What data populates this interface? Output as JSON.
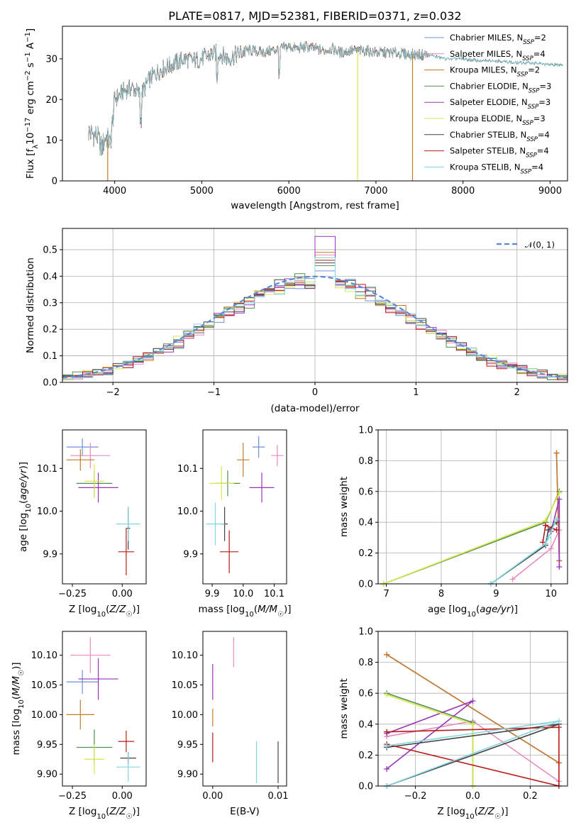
{
  "title": "PLATE=0817, MJD=52381, FIBERID=0371, z=0.032",
  "colors": {
    "Chabrier MILES": "#6f8fdc",
    "Salpeter MILES": "#e88bbd",
    "Kroupa MILES": "#c67b27",
    "Chabrier ELODIE": "#4f8f4f",
    "Salpeter ELODIE": "#9b33b8",
    "Kroupa ELODIE": "#d8e64a",
    "Chabrier STELIB": "#454545",
    "Salpeter STELIB": "#b81a1a",
    "Kroupa STELIB": "#82d6e0",
    "normal": "#5b87d8"
  },
  "chart_data": [
    {
      "id": "spectrum",
      "type": "line",
      "title": "PLATE=0817, MJD=52381, FIBERID=0371, z=0.032",
      "xlabel": "wavelength [Angstrom, rest frame]",
      "ylabel": "Flux [f$_\\lambda$10$^{-17}$ erg cm$^{-2}$ s$^{-1}$ A$^{-1}$]",
      "ylabel_parts": [
        "Flux [f",
        "λ",
        "10",
        "−17",
        " erg cm",
        "−2",
        " s",
        "−1",
        " A",
        "−1",
        "]"
      ],
      "xlim": [
        3400,
        9200
      ],
      "ylim": [
        0,
        38
      ],
      "xticks": [
        4000,
        5000,
        6000,
        7000,
        8000,
        9000
      ],
      "yticks": [
        0,
        10,
        20,
        30
      ],
      "legend_position": "top-right",
      "legend": [
        {
          "label": "Chabrier MILES, N",
          "sub": "SSP",
          "suffix": "=2",
          "color_key": "Chabrier MILES"
        },
        {
          "label": "Salpeter MILES, N",
          "sub": "SSP",
          "suffix": "=4",
          "color_key": "Salpeter MILES"
        },
        {
          "label": "Kroupa MILES, N",
          "sub": "SSP",
          "suffix": "=2",
          "color_key": "Kroupa MILES"
        },
        {
          "label": "Chabrier ELODIE, N",
          "sub": "SSP",
          "suffix": "=3",
          "color_key": "Chabrier ELODIE"
        },
        {
          "label": "Salpeter ELODIE, N",
          "sub": "SSP",
          "suffix": "=3",
          "color_key": "Salpeter ELODIE"
        },
        {
          "label": "Kroupa ELODIE, N",
          "sub": "SSP",
          "suffix": "=3",
          "color_key": "Kroupa ELODIE"
        },
        {
          "label": "Chabrier STELIB, N",
          "sub": "SSP",
          "suffix": "=4",
          "color_key": "Chabrier STELIB"
        },
        {
          "label": "Salpeter STELIB, N",
          "sub": "SSP",
          "suffix": "=4",
          "color_key": "Salpeter STELIB"
        },
        {
          "label": "Kroupa STELIB, N",
          "sub": "SSP",
          "suffix": "=4",
          "color_key": "Kroupa STELIB"
        }
      ],
      "continuum": [
        [
          3700,
          12
        ],
        [
          3800,
          11
        ],
        [
          3850,
          8
        ],
        [
          3900,
          11
        ],
        [
          3950,
          9
        ],
        [
          4000,
          20
        ],
        [
          4100,
          22
        ],
        [
          4200,
          23
        ],
        [
          4300,
          21
        ],
        [
          4400,
          25
        ],
        [
          4500,
          27
        ],
        [
          4600,
          28
        ],
        [
          4700,
          29
        ],
        [
          4800,
          30
        ],
        [
          4900,
          29.5
        ],
        [
          5000,
          30
        ],
        [
          5100,
          31
        ],
        [
          5200,
          31.5
        ],
        [
          5300,
          30
        ],
        [
          5400,
          31
        ],
        [
          5500,
          32
        ],
        [
          5600,
          32
        ],
        [
          5700,
          31.5
        ],
        [
          5800,
          32
        ],
        [
          5900,
          32.5
        ],
        [
          6000,
          33
        ],
        [
          6100,
          32.5
        ],
        [
          6200,
          33
        ],
        [
          6300,
          32.5
        ],
        [
          6400,
          32
        ],
        [
          6500,
          32.5
        ],
        [
          6600,
          31.5
        ],
        [
          6700,
          32
        ],
        [
          6800,
          32
        ],
        [
          6900,
          32
        ],
        [
          7000,
          31.5
        ],
        [
          7200,
          31.5
        ],
        [
          7400,
          31
        ],
        [
          7600,
          31
        ],
        [
          7800,
          30
        ],
        [
          8000,
          30
        ],
        [
          8200,
          29.5
        ],
        [
          8400,
          29.5
        ],
        [
          8600,
          29
        ],
        [
          8800,
          29
        ],
        [
          9000,
          28.5
        ],
        [
          9150,
          28.5
        ]
      ],
      "dropouts": [
        {
          "x": 3920,
          "y": 0,
          "color_key": "Kroupa MILES"
        },
        {
          "x": 6790,
          "y": 0,
          "color_key": "Kroupa ELODIE"
        },
        {
          "x": 7420,
          "y": 0,
          "color_key": "Kroupa MILES"
        }
      ]
    },
    {
      "id": "residuals",
      "type": "step-histogram",
      "xlabel": "(data-model)/error",
      "ylabel": "Normed distribution",
      "xlim": [
        -2.5,
        2.5
      ],
      "ylim": [
        0,
        0.58
      ],
      "xticks": [
        -2,
        -1,
        0,
        1,
        2
      ],
      "yticks": [
        0.0,
        0.1,
        0.2,
        0.3,
        0.4,
        0.5
      ],
      "grid": true,
      "legend_position": "top-right",
      "legend_label": "𝒩(0, 1)",
      "bin_width": 0.1,
      "peak_heights": {
        "Chabrier MILES": 0.42,
        "Salpeter MILES": 0.48,
        "Kroupa MILES": 0.49,
        "Chabrier ELODIE": 0.44,
        "Salpeter ELODIE": 0.55,
        "Kroupa ELODIE": 0.47,
        "Chabrier STELIB": 0.45,
        "Salpeter STELIB": 0.46,
        "Kroupa STELIB": 0.47
      }
    },
    {
      "id": "age-vs-Z",
      "type": "errorbar",
      "xlabel": "Z [log10(Z/Z☉)]",
      "ylabel": "age [log10(age/yr)]",
      "xlim": [
        -0.3,
        0.12
      ],
      "ylim": [
        9.83,
        10.19
      ],
      "xticks": [
        -0.25,
        0.0
      ],
      "xtick_labels": [
        "−0.25",
        "0.00"
      ],
      "yticks": [
        9.9,
        10.0,
        10.1
      ],
      "ytick_labels": [
        "9.9",
        "10.0",
        "10.1"
      ],
      "points": [
        {
          "model": "Chabrier MILES",
          "x": -0.2,
          "y": 10.15,
          "xerr": 0.08,
          "yerr": 0.02
        },
        {
          "model": "Salpeter MILES",
          "x": -0.16,
          "y": 10.13,
          "xerr": 0.1,
          "yerr": 0.03
        },
        {
          "model": "Kroupa MILES",
          "x": -0.21,
          "y": 10.12,
          "xerr": 0.07,
          "yerr": 0.025
        },
        {
          "model": "Chabrier ELODIE",
          "x": -0.14,
          "y": 10.065,
          "xerr": 0.09,
          "yerr": 0.03
        },
        {
          "model": "Salpeter ELODIE",
          "x": -0.12,
          "y": 10.055,
          "xerr": 0.1,
          "yerr": 0.035
        },
        {
          "model": "Kroupa ELODIE",
          "x": -0.14,
          "y": 10.07,
          "xerr": 0.05,
          "yerr": 0.04
        },
        {
          "model": "Chabrier STELIB",
          "x": 0.03,
          "y": 9.96,
          "xerr": 0.01,
          "yerr": 0.05
        },
        {
          "model": "Salpeter STELIB",
          "x": 0.02,
          "y": 9.905,
          "xerr": 0.04,
          "yerr": 0.055
        },
        {
          "model": "Kroupa STELIB",
          "x": 0.03,
          "y": 9.97,
          "xerr": 0.06,
          "yerr": 0.04
        }
      ]
    },
    {
      "id": "age-vs-mass",
      "type": "errorbar",
      "xlabel": "mass [log10(M/M☉)]",
      "ylabel": "",
      "xlim": [
        9.87,
        10.14
      ],
      "ylim": [
        9.83,
        10.19
      ],
      "xticks": [
        9.9,
        10.0,
        10.1
      ],
      "xtick_labels": [
        "9.9",
        "10.0",
        "10.1"
      ],
      "yticks": [
        9.9,
        10.0,
        10.1
      ],
      "ytick_labels": [
        "9.9",
        "10.0",
        "10.1"
      ],
      "points": [
        {
          "model": "Chabrier MILES",
          "x": 10.05,
          "y": 10.15,
          "xerr": 0.02,
          "yerr": 0.025
        },
        {
          "model": "Salpeter MILES",
          "x": 10.11,
          "y": 10.13,
          "xerr": 0.02,
          "yerr": 0.025
        },
        {
          "model": "Kroupa MILES",
          "x": 10.0,
          "y": 10.12,
          "xerr": 0.02,
          "yerr": 0.04
        },
        {
          "model": "Chabrier ELODIE",
          "x": 9.95,
          "y": 10.065,
          "xerr": 0.04,
          "yerr": 0.03
        },
        {
          "model": "Salpeter ELODIE",
          "x": 10.06,
          "y": 10.055,
          "xerr": 0.04,
          "yerr": 0.035
        },
        {
          "model": "Kroupa ELODIE",
          "x": 9.93,
          "y": 10.065,
          "xerr": 0.04,
          "yerr": 0.04
        },
        {
          "model": "Chabrier STELIB",
          "x": 9.94,
          "y": 9.97,
          "xerr": 0.01,
          "yerr": 0.04
        },
        {
          "model": "Salpeter STELIB",
          "x": 9.955,
          "y": 9.905,
          "xerr": 0.03,
          "yerr": 0.05
        },
        {
          "model": "Kroupa STELIB",
          "x": 9.91,
          "y": 9.97,
          "xerr": 0.03,
          "yerr": 0.05
        }
      ]
    },
    {
      "id": "weight-vs-age",
      "type": "line",
      "xlabel": "age [log10(age/yr)]",
      "ylabel": "mass weight",
      "xlim": [
        6.85,
        10.3
      ],
      "ylim": [
        0,
        1
      ],
      "xticks": [
        7,
        8,
        9,
        10
      ],
      "xtick_labels": [
        "7",
        "8",
        "9",
        "10"
      ],
      "yticks": [
        0.0,
        0.2,
        0.4,
        0.6,
        0.8,
        1.0
      ],
      "ytick_labels": [
        "0.0",
        "0.2",
        "0.4",
        "0.6",
        "0.8",
        "1.0"
      ],
      "grid": true,
      "series": [
        {
          "model": "Chabrier MILES",
          "x": [
            10.1,
            10.15
          ],
          "y": [
            0.85,
            0.15
          ]
        },
        {
          "model": "Salpeter MILES",
          "x": [
            9.3,
            10.0,
            10.15,
            10.1
          ],
          "y": [
            0.03,
            0.23,
            0.35,
            0.42
          ]
        },
        {
          "model": "Kroupa MILES",
          "x": [
            10.1,
            10.15
          ],
          "y": [
            0.85,
            0.15
          ]
        },
        {
          "model": "Chabrier ELODIE",
          "x": [
            6.95,
            9.9,
            10.15
          ],
          "y": [
            0.0,
            0.4,
            0.6
          ]
        },
        {
          "model": "Salpeter ELODIE",
          "x": [
            10.0,
            10.15,
            10.15
          ],
          "y": [
            0.34,
            0.55,
            0.11
          ]
        },
        {
          "model": "Kroupa ELODIE",
          "x": [
            6.95,
            9.9,
            10.15
          ],
          "y": [
            0.0,
            0.41,
            0.59
          ]
        },
        {
          "model": "Chabrier STELIB",
          "x": [
            8.9,
            9.9,
            9.95,
            10.1
          ],
          "y": [
            0.0,
            0.25,
            0.35,
            0.4
          ]
        },
        {
          "model": "Salpeter STELIB",
          "x": [
            9.85,
            9.9,
            10.1
          ],
          "y": [
            0.27,
            0.38,
            0.35
          ]
        },
        {
          "model": "Kroupa STELIB",
          "x": [
            8.9,
            9.9,
            9.95,
            10.1
          ],
          "y": [
            0.0,
            0.26,
            0.3,
            0.42
          ]
        }
      ]
    },
    {
      "id": "mass-vs-Z",
      "type": "errorbar",
      "xlabel": "Z [log10(Z/Z☉)]",
      "ylabel": "mass [log10(M/M☉)]",
      "xlim": [
        -0.3,
        0.12
      ],
      "ylim": [
        9.88,
        10.14
      ],
      "xticks": [
        -0.25,
        0.0
      ],
      "xtick_labels": [
        "−0.25",
        "0.00"
      ],
      "yticks": [
        9.9,
        9.95,
        10.0,
        10.05,
        10.1
      ],
      "ytick_labels": [
        "9.90",
        "9.95",
        "10.00",
        "10.05",
        "10.10"
      ],
      "points": [
        {
          "model": "Chabrier MILES",
          "x": -0.2,
          "y": 10.055,
          "xerr": 0.08,
          "yerr": 0.02
        },
        {
          "model": "Salpeter MILES",
          "x": -0.16,
          "y": 10.1,
          "xerr": 0.1,
          "yerr": 0.03
        },
        {
          "model": "Kroupa MILES",
          "x": -0.21,
          "y": 10.0,
          "xerr": 0.07,
          "yerr": 0.025
        },
        {
          "model": "Chabrier ELODIE",
          "x": -0.14,
          "y": 9.945,
          "xerr": 0.09,
          "yerr": 0.03
        },
        {
          "model": "Salpeter ELODIE",
          "x": -0.12,
          "y": 10.06,
          "xerr": 0.1,
          "yerr": 0.035
        },
        {
          "model": "Kroupa ELODIE",
          "x": -0.14,
          "y": 9.925,
          "xerr": 0.05,
          "yerr": 0.025
        },
        {
          "model": "Chabrier STELIB",
          "x": 0.03,
          "y": 9.927,
          "xerr": 0.04,
          "yerr": 0.01
        },
        {
          "model": "Salpeter STELIB",
          "x": 0.02,
          "y": 9.955,
          "xerr": 0.04,
          "yerr": 0.018
        },
        {
          "model": "Kroupa STELIB",
          "x": 0.03,
          "y": 9.912,
          "xerr": 0.06,
          "yerr": 0.025
        }
      ]
    },
    {
      "id": "mass-vs-ebv",
      "type": "errorbar",
      "xlabel": "E(B-V)",
      "ylabel": "",
      "xlim": [
        -0.0015,
        0.0113
      ],
      "ylim": [
        9.88,
        10.14
      ],
      "xticks": [
        0.0,
        0.01
      ],
      "xtick_labels": [
        "0.00",
        "0.01"
      ],
      "yticks": [
        9.9,
        9.95,
        10.0,
        10.05,
        10.1
      ],
      "ytick_labels": [
        "9.90",
        "9.95",
        "10.00",
        "10.05",
        "10.10"
      ],
      "points": [
        {
          "model": "Salpeter MILES",
          "x": 0.0032,
          "y": 10.105,
          "xerr": 0,
          "yerr": 0.025
        },
        {
          "model": "Salpeter ELODIE",
          "x": 0.0,
          "y": 10.055,
          "xerr": 0,
          "yerr": 0.03
        },
        {
          "model": "Kroupa MILES",
          "x": 0.0,
          "y": 9.995,
          "xerr": 0,
          "yerr": 0.015
        },
        {
          "model": "Salpeter STELIB",
          "x": 0.0,
          "y": 9.945,
          "xerr": 0,
          "yerr": 0.025
        },
        {
          "model": "Kroupa STELIB",
          "x": 0.0067,
          "y": 9.92,
          "xerr": 0,
          "yerr": 0.035
        },
        {
          "model": "Chabrier STELIB",
          "x": 0.01,
          "y": 9.92,
          "xerr": 0,
          "yerr": 0.035
        }
      ]
    },
    {
      "id": "weight-vs-Z",
      "type": "line",
      "xlabel": "Z [log10(Z/Z☉)]",
      "ylabel": "mass weight",
      "xlim": [
        -0.33,
        0.33
      ],
      "ylim": [
        0,
        1
      ],
      "xticks": [
        -0.2,
        0.0,
        0.2
      ],
      "xtick_labels": [
        "−0.2",
        "0.0",
        "0.2"
      ],
      "yticks": [
        0.0,
        0.2,
        0.4,
        0.6,
        0.8,
        1.0
      ],
      "ytick_labels": [
        "0.0",
        "0.2",
        "0.4",
        "0.6",
        "0.8",
        "1.0"
      ],
      "grid": true,
      "series": [
        {
          "model": "Chabrier MILES",
          "x": [
            -0.3,
            0.3
          ],
          "y": [
            0.85,
            0.15
          ]
        },
        {
          "model": "Salpeter MILES",
          "x": [
            -0.3,
            0.0,
            0.3
          ],
          "y": [
            0.32,
            0.42,
            0.03
          ]
        },
        {
          "model": "Kroupa MILES",
          "x": [
            -0.3,
            0.3
          ],
          "y": [
            0.85,
            0.15
          ]
        },
        {
          "model": "Chabrier ELODIE",
          "x": [
            -0.3,
            0.0,
            0.0
          ],
          "y": [
            0.6,
            0.41,
            0.0
          ]
        },
        {
          "model": "Salpeter ELODIE",
          "x": [
            -0.3,
            0.0,
            -0.3
          ],
          "y": [
            0.11,
            0.55,
            0.34
          ]
        },
        {
          "model": "Kroupa ELODIE",
          "x": [
            -0.3,
            0.0,
            0.0
          ],
          "y": [
            0.59,
            0.4,
            0.0
          ]
        },
        {
          "model": "Chabrier STELIB",
          "x": [
            -0.3,
            0.3,
            -0.3
          ],
          "y": [
            0.0,
            0.4,
            0.25
          ]
        },
        {
          "model": "Salpeter STELIB",
          "x": [
            -0.3,
            0.3,
            0.3,
            -0.3
          ],
          "y": [
            0.35,
            0.38,
            0.0,
            0.27
          ]
        },
        {
          "model": "Kroupa STELIB",
          "x": [
            -0.3,
            0.3,
            -0.3
          ],
          "y": [
            0.0,
            0.42,
            0.26
          ]
        }
      ]
    }
  ]
}
